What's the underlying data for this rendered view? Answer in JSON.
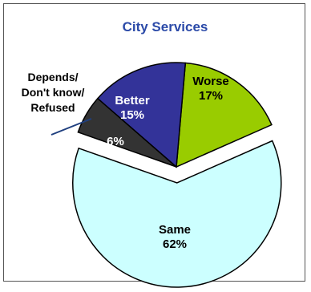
{
  "chart_data": {
    "type": "pie",
    "title": "City Services",
    "slices": [
      {
        "label": "Worse",
        "value": 17,
        "value_label": "17%",
        "color": "#99cc00",
        "explode": false
      },
      {
        "label": "Same",
        "value": 62,
        "value_label": "62%",
        "color": "#ccffff",
        "explode": true
      },
      {
        "label": "Depends/ Don't know/ Refused",
        "label_lines": [
          "Depends/",
          "Don't know/",
          "Refused"
        ],
        "value": 6,
        "value_label": "6%",
        "color": "#333333",
        "explode": false
      },
      {
        "label": "Better",
        "value": 15,
        "value_label": "15%",
        "color": "#333399",
        "explode": false
      }
    ],
    "colors": {
      "title": "#2b4aa8",
      "outline": "#000000",
      "callout_line": "#1f3f7f"
    }
  }
}
